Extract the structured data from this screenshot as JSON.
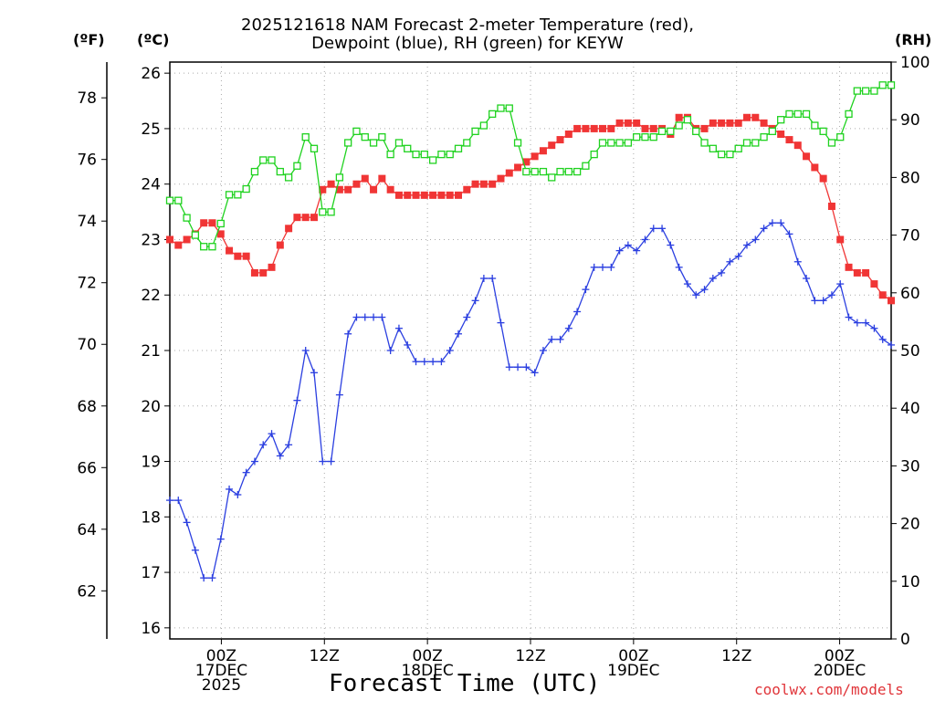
{
  "chart_data": {
    "type": "line",
    "title_line1": "2025121618 NAM Forecast 2-meter Temperature (red),",
    "title_line2": "Dewpoint (blue), RH (green) for KEYW",
    "units": {
      "fahrenheit": "(ºF)",
      "celsius": "(ºC)",
      "rh": "(RH)"
    },
    "xlabel": "Forecast Time (UTC)",
    "credit": "coolwx.com/models",
    "x_unit": "forecast hour",
    "x_range": [
      0,
      84
    ],
    "x_ticks": [
      {
        "hour": 6,
        "labels": [
          "00Z",
          "17DEC",
          "2025"
        ]
      },
      {
        "hour": 18,
        "labels": [
          "12Z"
        ]
      },
      {
        "hour": 30,
        "labels": [
          "00Z",
          "18DEC"
        ]
      },
      {
        "hour": 42,
        "labels": [
          "12Z"
        ]
      },
      {
        "hour": 54,
        "labels": [
          "00Z",
          "19DEC"
        ]
      },
      {
        "hour": 66,
        "labels": [
          "12Z"
        ]
      },
      {
        "hour": 78,
        "labels": [
          "00Z",
          "20DEC"
        ]
      }
    ],
    "y_celsius": {
      "range": [
        15.8,
        26.2
      ],
      "ticks": [
        16,
        17,
        18,
        19,
        20,
        21,
        22,
        23,
        24,
        25,
        26
      ]
    },
    "y_fahrenheit": {
      "ticks": [
        62,
        64,
        66,
        68,
        70,
        72,
        74,
        76,
        78
      ]
    },
    "y_rh": {
      "range": [
        0,
        100
      ],
      "ticks": [
        0,
        10,
        20,
        30,
        40,
        50,
        60,
        70,
        80,
        90,
        100
      ]
    },
    "colors": {
      "temperature": "#f03535",
      "dewpoint": "#2b3fe0",
      "rh": "#1fd21f",
      "grid": "#aaaaaa",
      "axis": "#000000"
    },
    "series": [
      {
        "name": "Temperature",
        "unit": "C",
        "marker": "filled-square",
        "values": [
          23.0,
          22.9,
          23.0,
          23.1,
          23.3,
          23.3,
          23.1,
          22.8,
          22.7,
          22.7,
          22.4,
          22.4,
          22.5,
          22.9,
          23.2,
          23.4,
          23.4,
          23.4,
          23.9,
          24.0,
          23.9,
          23.9,
          24.0,
          24.1,
          23.9,
          24.1,
          23.9,
          23.8,
          23.8,
          23.8,
          23.8,
          23.8,
          23.8,
          23.8,
          23.8,
          23.9,
          24.0,
          24.0,
          24.0,
          24.1,
          24.2,
          24.3,
          24.4,
          24.5,
          24.6,
          24.7,
          24.8,
          24.9,
          25.0,
          25.0,
          25.0,
          25.0,
          25.0,
          25.1,
          25.1,
          25.1,
          25.0,
          25.0,
          25.0,
          24.9,
          25.2,
          25.2,
          25.0,
          25.0,
          25.1,
          25.1,
          25.1,
          25.1,
          25.2,
          25.2,
          25.1,
          25.0,
          24.9,
          24.8,
          24.7,
          24.5,
          24.3,
          24.1,
          23.6,
          23.0,
          22.5,
          22.4,
          22.4,
          22.2,
          22.0,
          21.9
        ]
      },
      {
        "name": "Dewpoint",
        "unit": "C",
        "marker": "plus",
        "values": [
          18.3,
          18.3,
          17.9,
          17.4,
          16.9,
          16.9,
          17.6,
          18.5,
          18.4,
          18.8,
          19.0,
          19.3,
          19.5,
          19.1,
          19.3,
          20.1,
          21.0,
          20.6,
          19.0,
          19.0,
          20.2,
          21.3,
          21.6,
          21.6,
          21.6,
          21.6,
          21.0,
          21.4,
          21.1,
          20.8,
          20.8,
          20.8,
          20.8,
          21.0,
          21.3,
          21.6,
          21.9,
          22.3,
          22.3,
          21.5,
          20.7,
          20.7,
          20.7,
          20.6,
          21.0,
          21.2,
          21.2,
          21.4,
          21.7,
          22.1,
          22.5,
          22.5,
          22.5,
          22.8,
          22.9,
          22.8,
          23.0,
          23.2,
          23.2,
          22.9,
          22.5,
          22.2,
          22.0,
          22.1,
          22.3,
          22.4,
          22.6,
          22.7,
          22.9,
          23.0,
          23.2,
          23.3,
          23.3,
          23.1,
          22.6,
          22.3,
          21.9,
          21.9,
          22.0,
          22.2,
          21.6,
          21.5,
          21.5,
          21.4,
          21.2,
          21.1
        ]
      },
      {
        "name": "RH",
        "unit": "%",
        "marker": "open-square",
        "values": [
          76,
          76,
          73,
          70,
          68,
          68,
          72,
          77,
          77,
          78,
          81,
          83,
          83,
          81,
          80,
          82,
          87,
          85,
          74,
          74,
          80,
          86,
          88,
          87,
          86,
          87,
          84,
          86,
          85,
          84,
          84,
          83,
          84,
          84,
          85,
          86,
          88,
          89,
          91,
          92,
          92,
          86,
          81,
          81,
          81,
          80,
          81,
          81,
          81,
          82,
          84,
          86,
          86,
          86,
          86,
          87,
          87,
          87,
          88,
          88,
          89,
          90,
          88,
          86,
          85,
          84,
          84,
          85,
          86,
          86,
          87,
          88,
          90,
          91,
          91,
          91,
          89,
          88,
          86,
          87,
          91,
          95,
          95,
          95,
          96,
          96
        ]
      }
    ]
  }
}
